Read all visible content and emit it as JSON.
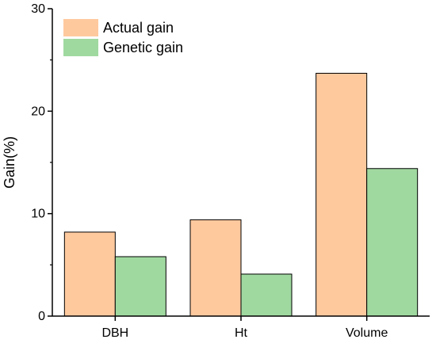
{
  "chart_data": {
    "type": "bar",
    "categories": [
      "DBH",
      "Ht",
      "Volume"
    ],
    "series": [
      {
        "name": "Actual gain",
        "values": [
          8.2,
          9.4,
          23.7
        ],
        "color": "#FFC99E"
      },
      {
        "name": "Genetic gain",
        "values": [
          5.8,
          4.1,
          14.4
        ],
        "color": "#A0D9A0"
      }
    ],
    "title": "",
    "xlabel": "",
    "ylabel": "Gain(%)",
    "ylim": [
      0,
      30
    ],
    "yticks": [
      0,
      10,
      20,
      30
    ],
    "grid": false,
    "legend_position": "top-left"
  }
}
